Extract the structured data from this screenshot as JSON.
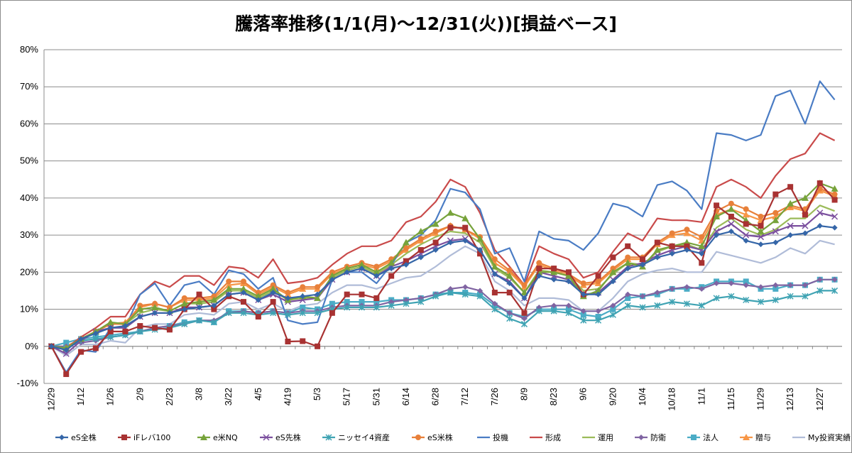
{
  "chart_data": {
    "type": "line",
    "title": "騰落率推移(1/1(月)～12/31(火))[損益ベース]",
    "xlabel": "",
    "ylabel": "",
    "ylim": [
      -0.1,
      0.8
    ],
    "y_ticks": [
      -0.1,
      0.0,
      0.1,
      0.2,
      0.3,
      0.4,
      0.5,
      0.6,
      0.7,
      0.8
    ],
    "y_tick_labels": [
      "-10%",
      "0%",
      "10%",
      "20%",
      "30%",
      "40%",
      "50%",
      "60%",
      "70%",
      "80%"
    ],
    "grid": true,
    "legend_position": "bottom",
    "x": [
      "12/29",
      "1/5",
      "1/12",
      "1/19",
      "1/26",
      "2/2",
      "2/9",
      "2/16",
      "2/23",
      "3/1",
      "3/8",
      "3/15",
      "3/22",
      "3/29",
      "4/5",
      "4/12",
      "4/19",
      "4/26",
      "5/3",
      "5/10",
      "5/17",
      "5/24",
      "5/31",
      "6/7",
      "6/14",
      "6/21",
      "6/28",
      "7/5",
      "7/12",
      "7/19",
      "7/26",
      "8/2",
      "8/9",
      "8/16",
      "8/23",
      "8/30",
      "9/6",
      "9/13",
      "9/20",
      "9/27",
      "10/4",
      "10/11",
      "10/18",
      "10/25",
      "11/1",
      "11/8",
      "11/15",
      "11/22",
      "11/29",
      "12/6",
      "12/13",
      "12/20",
      "12/27",
      "12/31"
    ],
    "series": [
      {
        "name": "eS全株",
        "color": "#3566a8",
        "marker": "diamond",
        "values": [
          0,
          -0.01,
          0.02,
          0.035,
          0.05,
          0.055,
          0.08,
          0.09,
          0.09,
          0.1,
          0.105,
          0.11,
          0.14,
          0.145,
          0.125,
          0.145,
          0.13,
          0.135,
          0.14,
          0.18,
          0.2,
          0.21,
          0.19,
          0.21,
          0.22,
          0.24,
          0.26,
          0.28,
          0.285,
          0.26,
          0.195,
          0.17,
          0.13,
          0.19,
          0.18,
          0.175,
          0.14,
          0.14,
          0.175,
          0.21,
          0.22,
          0.24,
          0.25,
          0.26,
          0.25,
          0.3,
          0.31,
          0.285,
          0.275,
          0.28,
          0.3,
          0.305,
          0.325,
          0.32
        ]
      },
      {
        "name": "iFレバ100",
        "color": "#a83232",
        "marker": "square",
        "values": [
          0,
          -0.075,
          -0.015,
          -0.005,
          0.04,
          0.04,
          0.055,
          0.05,
          0.045,
          0.1,
          0.14,
          0.1,
          0.135,
          0.12,
          0.08,
          0.12,
          0.013,
          0.014,
          0.0,
          0.09,
          0.14,
          0.14,
          0.13,
          0.19,
          0.23,
          0.26,
          0.28,
          0.32,
          0.32,
          0.25,
          0.145,
          0.145,
          0.09,
          0.21,
          0.21,
          0.2,
          0.14,
          0.19,
          0.24,
          0.27,
          0.235,
          0.28,
          0.27,
          0.27,
          0.225,
          0.38,
          0.35,
          0.33,
          0.325,
          0.41,
          0.43,
          0.355,
          0.44,
          0.395
        ]
      },
      {
        "name": "e米NQ",
        "color": "#77a33b",
        "marker": "triangle",
        "values": [
          0,
          -0.005,
          0.02,
          0.04,
          0.065,
          0.06,
          0.1,
          0.105,
          0.095,
          0.115,
          0.12,
          0.125,
          0.155,
          0.155,
          0.135,
          0.155,
          0.125,
          0.135,
          0.13,
          0.19,
          0.21,
          0.22,
          0.2,
          0.225,
          0.28,
          0.31,
          0.33,
          0.36,
          0.345,
          0.29,
          0.215,
          0.19,
          0.145,
          0.2,
          0.2,
          0.19,
          0.135,
          0.15,
          0.2,
          0.225,
          0.215,
          0.26,
          0.27,
          0.28,
          0.27,
          0.35,
          0.37,
          0.34,
          0.31,
          0.34,
          0.385,
          0.4,
          0.44,
          0.425
        ]
      },
      {
        "name": "eS先株",
        "color": "#7b4f9e",
        "marker": "x",
        "values": [
          0,
          -0.02,
          0.015,
          0.04,
          0.05,
          0.05,
          0.08,
          0.09,
          0.09,
          0.105,
          0.105,
          0.11,
          0.14,
          0.145,
          0.125,
          0.14,
          0.12,
          0.125,
          0.13,
          0.18,
          0.2,
          0.21,
          0.19,
          0.215,
          0.23,
          0.25,
          0.27,
          0.285,
          0.29,
          0.26,
          0.195,
          0.175,
          0.13,
          0.2,
          0.19,
          0.18,
          0.14,
          0.145,
          0.18,
          0.215,
          0.225,
          0.245,
          0.26,
          0.27,
          0.26,
          0.31,
          0.33,
          0.3,
          0.295,
          0.31,
          0.325,
          0.325,
          0.36,
          0.35
        ]
      },
      {
        "name": "ニッセイ4資産",
        "color": "#3fa3b3",
        "marker": "star",
        "values": [
          0,
          -0.005,
          0.015,
          0.02,
          0.025,
          0.03,
          0.04,
          0.045,
          0.05,
          0.06,
          0.07,
          0.065,
          0.09,
          0.09,
          0.085,
          0.09,
          0.085,
          0.09,
          0.09,
          0.1,
          0.105,
          0.105,
          0.105,
          0.11,
          0.115,
          0.12,
          0.135,
          0.145,
          0.14,
          0.135,
          0.1,
          0.075,
          0.06,
          0.095,
          0.095,
          0.09,
          0.07,
          0.07,
          0.085,
          0.11,
          0.105,
          0.11,
          0.12,
          0.115,
          0.11,
          0.13,
          0.135,
          0.125,
          0.12,
          0.125,
          0.135,
          0.135,
          0.15,
          0.15
        ]
      },
      {
        "name": "eS米株",
        "color": "#e8803a",
        "marker": "circle",
        "values": [
          0,
          -0.005,
          0.02,
          0.04,
          0.06,
          0.06,
          0.11,
          0.115,
          0.105,
          0.13,
          0.13,
          0.135,
          0.175,
          0.175,
          0.145,
          0.165,
          0.145,
          0.16,
          0.16,
          0.2,
          0.215,
          0.225,
          0.215,
          0.235,
          0.265,
          0.29,
          0.31,
          0.325,
          0.315,
          0.295,
          0.235,
          0.205,
          0.165,
          0.225,
          0.21,
          0.195,
          0.17,
          0.175,
          0.21,
          0.24,
          0.24,
          0.28,
          0.305,
          0.315,
          0.295,
          0.365,
          0.385,
          0.37,
          0.35,
          0.36,
          0.38,
          0.37,
          0.425,
          0.41
        ]
      },
      {
        "name": "投機",
        "color": "#4a7cc4",
        "marker": "none",
        "values": [
          0,
          -0.07,
          -0.01,
          -0.015,
          0.05,
          0.05,
          0.14,
          0.17,
          0.11,
          0.165,
          0.175,
          0.14,
          0.205,
          0.195,
          0.155,
          0.185,
          0.07,
          0.06,
          0.065,
          0.18,
          0.2,
          0.2,
          0.17,
          0.22,
          0.28,
          0.3,
          0.34,
          0.425,
          0.415,
          0.37,
          0.25,
          0.265,
          0.175,
          0.31,
          0.29,
          0.285,
          0.26,
          0.305,
          0.385,
          0.375,
          0.35,
          0.435,
          0.445,
          0.42,
          0.37,
          0.575,
          0.57,
          0.555,
          0.57,
          0.675,
          0.69,
          0.6,
          0.715,
          0.665
        ]
      },
      {
        "name": "形成",
        "color": "#c94a4a",
        "marker": "none",
        "values": [
          0,
          -0.005,
          0.025,
          0.05,
          0.08,
          0.08,
          0.14,
          0.175,
          0.16,
          0.19,
          0.19,
          0.165,
          0.215,
          0.21,
          0.185,
          0.235,
          0.17,
          0.175,
          0.185,
          0.22,
          0.25,
          0.27,
          0.27,
          0.285,
          0.335,
          0.35,
          0.39,
          0.45,
          0.43,
          0.36,
          0.26,
          0.215,
          0.165,
          0.27,
          0.25,
          0.235,
          0.185,
          0.2,
          0.255,
          0.305,
          0.285,
          0.345,
          0.34,
          0.34,
          0.335,
          0.43,
          0.45,
          0.43,
          0.4,
          0.46,
          0.505,
          0.52,
          0.575,
          0.555
        ]
      },
      {
        "name": "運用",
        "color": "#9bbb59",
        "marker": "none",
        "values": [
          0,
          -0.005,
          0.02,
          0.04,
          0.06,
          0.06,
          0.09,
          0.1,
          0.095,
          0.115,
          0.115,
          0.12,
          0.15,
          0.15,
          0.13,
          0.15,
          0.125,
          0.13,
          0.13,
          0.185,
          0.205,
          0.215,
          0.195,
          0.22,
          0.25,
          0.275,
          0.295,
          0.31,
          0.305,
          0.28,
          0.21,
          0.185,
          0.145,
          0.205,
          0.2,
          0.19,
          0.15,
          0.155,
          0.195,
          0.225,
          0.22,
          0.255,
          0.27,
          0.275,
          0.26,
          0.32,
          0.345,
          0.315,
          0.3,
          0.315,
          0.345,
          0.345,
          0.38,
          0.365
        ]
      },
      {
        "name": "防衛",
        "color": "#8064a2",
        "marker": "diamond",
        "values": [
          0,
          0.0,
          0.01,
          0.015,
          0.025,
          0.03,
          0.04,
          0.05,
          0.055,
          0.06,
          0.07,
          0.07,
          0.09,
          0.095,
          0.09,
          0.095,
          0.09,
          0.095,
          0.095,
          0.105,
          0.11,
          0.11,
          0.11,
          0.12,
          0.125,
          0.13,
          0.14,
          0.155,
          0.16,
          0.15,
          0.115,
          0.09,
          0.075,
          0.105,
          0.11,
          0.11,
          0.095,
          0.095,
          0.11,
          0.14,
          0.135,
          0.145,
          0.155,
          0.16,
          0.155,
          0.17,
          0.17,
          0.165,
          0.16,
          0.165,
          0.165,
          0.165,
          0.18,
          0.18
        ]
      },
      {
        "name": "法人",
        "color": "#4bacc6",
        "marker": "square",
        "values": [
          0,
          0.01,
          0.02,
          0.025,
          0.03,
          0.035,
          0.04,
          0.05,
          0.055,
          0.065,
          0.07,
          0.065,
          0.095,
          0.095,
          0.09,
          0.095,
          0.09,
          0.105,
          0.1,
          0.115,
          0.12,
          0.12,
          0.12,
          0.125,
          0.125,
          0.13,
          0.14,
          0.145,
          0.145,
          0.14,
          0.11,
          0.09,
          0.08,
          0.1,
          0.1,
          0.1,
          0.085,
          0.08,
          0.1,
          0.13,
          0.135,
          0.14,
          0.155,
          0.155,
          0.16,
          0.175,
          0.175,
          0.175,
          0.155,
          0.155,
          0.165,
          0.165,
          0.18,
          0.18
        ]
      },
      {
        "name": "贈与",
        "color": "#f79646",
        "marker": "triangle",
        "values": [
          0,
          0.0,
          0.02,
          0.04,
          0.06,
          0.065,
          0.105,
          0.115,
          0.105,
          0.125,
          0.125,
          0.13,
          0.165,
          0.17,
          0.14,
          0.16,
          0.14,
          0.155,
          0.155,
          0.195,
          0.21,
          0.22,
          0.21,
          0.23,
          0.26,
          0.285,
          0.305,
          0.325,
          0.315,
          0.29,
          0.225,
          0.2,
          0.16,
          0.22,
          0.205,
          0.19,
          0.165,
          0.17,
          0.205,
          0.235,
          0.235,
          0.275,
          0.3,
          0.305,
          0.285,
          0.355,
          0.37,
          0.355,
          0.34,
          0.35,
          0.375,
          0.365,
          0.42,
          0.405
        ]
      },
      {
        "name": "My投資実績",
        "color": "#b0bcd8",
        "marker": "none",
        "values": [
          0,
          -0.025,
          0.005,
          0.005,
          0.015,
          0.01,
          0.05,
          0.06,
          0.06,
          0.085,
          0.09,
          0.085,
          0.115,
          0.12,
          0.1,
          0.115,
          0.095,
          0.11,
          0.115,
          0.145,
          0.165,
          0.165,
          0.155,
          0.17,
          0.185,
          0.19,
          0.215,
          0.245,
          0.27,
          0.25,
          0.175,
          0.15,
          0.11,
          0.13,
          0.13,
          0.125,
          0.095,
          0.095,
          0.13,
          0.175,
          0.195,
          0.205,
          0.21,
          0.2,
          0.2,
          0.255,
          0.245,
          0.235,
          0.225,
          0.24,
          0.265,
          0.25,
          0.285,
          0.275
        ]
      }
    ]
  }
}
